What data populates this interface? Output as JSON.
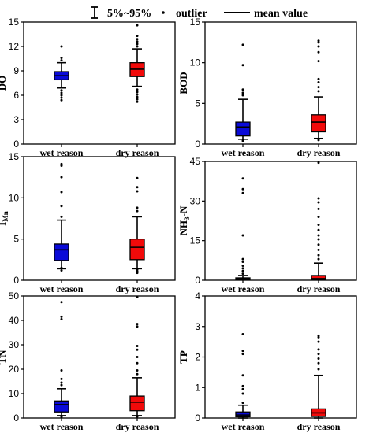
{
  "legend": {
    "range_label": "5%~95%",
    "outlier_label": "outlier",
    "mean_label": "mean value"
  },
  "colors": {
    "wet": "#0a0ad8",
    "dry": "#f20a0a"
  },
  "chart_data": [
    {
      "id": "DO",
      "type": "box",
      "ylabel": "DO",
      "ylabel_sub": "",
      "ylim": [
        0,
        15
      ],
      "yticks": [
        0,
        3,
        6,
        9,
        12,
        15
      ],
      "categories": [
        "wet reason",
        "dry reason"
      ],
      "boxes": [
        {
          "q1": 7.9,
          "median": 8.4,
          "q3": 8.9,
          "whisker_low": 6.9,
          "whisker_high": 10.0,
          "outliers": [
            5.4,
            5.7,
            6.0,
            6.3,
            6.6,
            10.3,
            10.6,
            12.0
          ]
        },
        {
          "q1": 8.3,
          "median": 9.2,
          "q3": 10.0,
          "whisker_low": 7.1,
          "whisker_high": 11.7,
          "outliers": [
            5.2,
            5.5,
            5.8,
            6.1,
            6.4,
            6.7,
            12.0,
            12.3,
            12.6,
            12.9,
            13.3,
            14.6
          ]
        }
      ]
    },
    {
      "id": "BOD",
      "type": "box",
      "ylabel": "BOD",
      "ylabel_sub": "",
      "ylim": [
        0,
        15
      ],
      "yticks": [
        0,
        5,
        10,
        15
      ],
      "categories": [
        "wet reason",
        "dry reason"
      ],
      "boxes": [
        {
          "q1": 1.0,
          "median": 2.1,
          "q3": 2.7,
          "whisker_low": 0.6,
          "whisker_high": 5.5,
          "outliers": [
            0.4,
            6.0,
            6.3,
            6.7,
            9.7,
            12.2
          ]
        },
        {
          "q1": 1.5,
          "median": 2.7,
          "q3": 3.6,
          "whisker_low": 0.7,
          "whisker_high": 5.8,
          "outliers": [
            0.5,
            6.5,
            7.0,
            7.6,
            8.0,
            10.2,
            11.3,
            12.0,
            12.5,
            12.7
          ]
        }
      ]
    },
    {
      "id": "IMn",
      "type": "box",
      "ylabel": "I",
      "ylabel_sub": "Mn",
      "ylim": [
        0,
        15
      ],
      "yticks": [
        0,
        5,
        10,
        15
      ],
      "categories": [
        "wet reason",
        "dry reason"
      ],
      "boxes": [
        {
          "q1": 2.4,
          "median": 3.7,
          "q3": 4.4,
          "whisker_low": 1.4,
          "whisker_high": 7.3,
          "outliers": [
            1.2,
            1.5,
            7.7,
            9.0,
            10.7,
            12.5,
            13.9,
            14.1
          ]
        },
        {
          "q1": 2.5,
          "median": 4.0,
          "q3": 5.0,
          "whisker_low": 1.4,
          "whisker_high": 7.7,
          "outliers": [
            0.9,
            1.1,
            1.3,
            8.4,
            8.8,
            10.8,
            11.3,
            12.4
          ]
        }
      ]
    },
    {
      "id": "NH3N",
      "type": "box",
      "ylabel": "NH",
      "ylabel_sub": "3",
      "ylabel_suffix": "-N",
      "ylim": [
        0,
        45
      ],
      "yticks": [
        0,
        15,
        30,
        45
      ],
      "categories": [
        "wet reason",
        "dry reason"
      ],
      "boxes": [
        {
          "q1": 0.2,
          "median": 0.5,
          "q3": 0.9,
          "whisker_low": 0.1,
          "whisker_high": 1.8,
          "outliers": [
            2.5,
            3.5,
            4.5,
            5.5,
            7.0,
            8.0,
            17.0,
            33.0,
            34.5,
            38.5
          ]
        },
        {
          "q1": 0.2,
          "median": 0.6,
          "q3": 1.8,
          "whisker_low": 0.1,
          "whisker_high": 6.5,
          "outliers": [
            8.0,
            9.5,
            11.5,
            13.5,
            15.5,
            17.0,
            19.0,
            21.0,
            24.0,
            27.0,
            29.5,
            31.0,
            44.5
          ]
        }
      ]
    },
    {
      "id": "TN",
      "type": "box",
      "ylabel": "TN",
      "ylabel_sub": "",
      "ylim": [
        0,
        50
      ],
      "yticks": [
        0,
        10,
        20,
        30,
        40,
        50
      ],
      "categories": [
        "wet reason",
        "dry reason"
      ],
      "boxes": [
        {
          "q1": 2.5,
          "median": 5.5,
          "q3": 7.0,
          "whisker_low": 1.0,
          "whisker_high": 12.0,
          "outliers": [
            0.5,
            13.5,
            14.5,
            16.0,
            19.5,
            40.5,
            41.5,
            47.5
          ]
        },
        {
          "q1": 3.0,
          "median": 6.5,
          "q3": 9.0,
          "whisker_low": 1.0,
          "whisker_high": 16.5,
          "outliers": [
            0.6,
            18.0,
            19.5,
            22.5,
            25.0,
            28.0,
            29.5,
            37.5,
            38.5,
            49.5
          ]
        }
      ]
    },
    {
      "id": "TP",
      "type": "box",
      "ylabel": "TP",
      "ylabel_sub": "",
      "ylim": [
        0,
        4
      ],
      "yticks": [
        0,
        1,
        2,
        3,
        4
      ],
      "categories": [
        "wet reason",
        "dry reason"
      ],
      "boxes": [
        {
          "q1": 0.04,
          "median": 0.1,
          "q3": 0.2,
          "whisker_low": 0.0,
          "whisker_high": 0.42,
          "outliers": [
            0.5,
            0.8,
            0.95,
            1.05,
            1.4,
            2.1,
            2.2,
            2.75
          ]
        },
        {
          "q1": 0.05,
          "median": 0.17,
          "q3": 0.3,
          "whisker_low": 0.0,
          "whisker_high": 1.4,
          "outliers": [
            1.6,
            1.8,
            1.95,
            2.1,
            2.25,
            2.5,
            2.65,
            2.7
          ]
        }
      ]
    }
  ]
}
